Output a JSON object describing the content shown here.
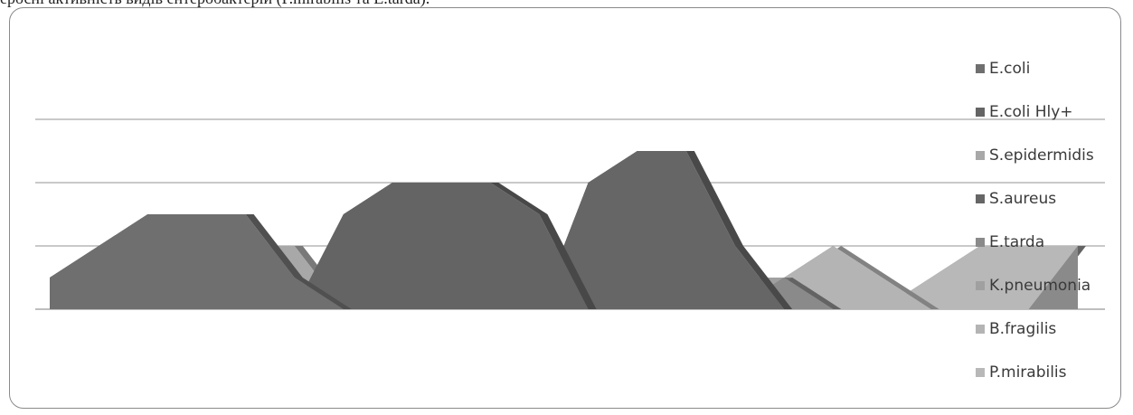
{
  "page": {
    "caption": "еросні активність видів ентеробактерій (P.mirabilis та E.tarda)."
  },
  "chart_data": {
    "type": "area",
    "view": "3d-area",
    "title": "",
    "xlabel": "",
    "ylabel": "",
    "x_count": 22,
    "ylim": [
      0,
      3
    ],
    "grid": true,
    "legend_position": "right",
    "series": [
      {
        "name": "E.coli",
        "color": "#6f6f6f",
        "values": [
          0.5,
          1.0,
          1.5,
          1.5,
          1.5,
          0.5,
          0.0,
          0.0,
          0.0,
          0.0,
          0.0,
          0.0,
          0.0,
          0.0,
          0.0,
          0.0,
          0.0,
          0.0,
          0.0,
          0.0,
          0.0,
          0.0
        ]
      },
      {
        "name": "E.coli Hly+",
        "color": "#646464",
        "values": [
          0.0,
          0.0,
          0.0,
          0.0,
          0.0,
          0.0,
          1.5,
          2.0,
          2.0,
          2.0,
          1.5,
          0.0,
          0.0,
          0.0,
          0.0,
          0.0,
          0.0,
          0.0,
          0.0,
          0.0,
          0.0,
          0.0
        ]
      },
      {
        "name": "S.epidermidis",
        "color": "#a8a8a8",
        "values": [
          0.0,
          0.0,
          0.0,
          0.0,
          1.0,
          1.0,
          0.0,
          0.0,
          0.0,
          0.0,
          0.0,
          0.0,
          0.0,
          0.0,
          0.0,
          0.0,
          0.0,
          0.0,
          0.0,
          0.0,
          0.0,
          0.0
        ]
      },
      {
        "name": "S.aureus",
        "color": "#666666",
        "values": [
          0.0,
          0.0,
          0.0,
          0.0,
          0.0,
          0.0,
          0.0,
          0.0,
          0.0,
          0.0,
          0.0,
          2.0,
          2.5,
          2.5,
          1.0,
          0.0,
          0.0,
          0.0,
          0.0,
          0.0,
          0.0,
          0.0
        ]
      },
      {
        "name": "E.tarda",
        "color": "#8a8a8a",
        "values": [
          0.0,
          0.0,
          0.0,
          0.0,
          0.0,
          0.0,
          0.0,
          0.0,
          0.0,
          0.0,
          1.0,
          1.0,
          0.0,
          0.0,
          0.0,
          0.5,
          0.0,
          0.0,
          0.0,
          0.0,
          0.0,
          1.0
        ]
      },
      {
        "name": "K.pneumonia",
        "color": "#a0a0a0",
        "values": [
          0.0,
          0.0,
          0.0,
          0.0,
          0.0,
          0.0,
          0.0,
          0.0,
          0.0,
          0.0,
          0.0,
          0.0,
          0.0,
          0.0,
          0.5,
          0.5,
          0.0,
          0.0,
          0.0,
          0.0,
          0.0,
          0.0
        ]
      },
      {
        "name": "B.fragilis",
        "color": "#b4b4b4",
        "values": [
          0.0,
          0.0,
          0.0,
          0.0,
          0.0,
          0.0,
          0.0,
          0.0,
          0.0,
          0.0,
          0.0,
          0.0,
          0.0,
          0.0,
          0.0,
          0.5,
          1.0,
          0.5,
          0.0,
          0.0,
          0.0,
          0.0
        ]
      },
      {
        "name": "P.mirabilis",
        "color": "#b8b8b8",
        "values": [
          0.0,
          0.0,
          0.0,
          0.0,
          0.0,
          0.0,
          0.0,
          0.0,
          0.0,
          0.0,
          0.0,
          0.0,
          0.0,
          0.0,
          0.0,
          0.0,
          0.0,
          0.0,
          0.5,
          1.0,
          1.0,
          1.0
        ]
      }
    ]
  }
}
